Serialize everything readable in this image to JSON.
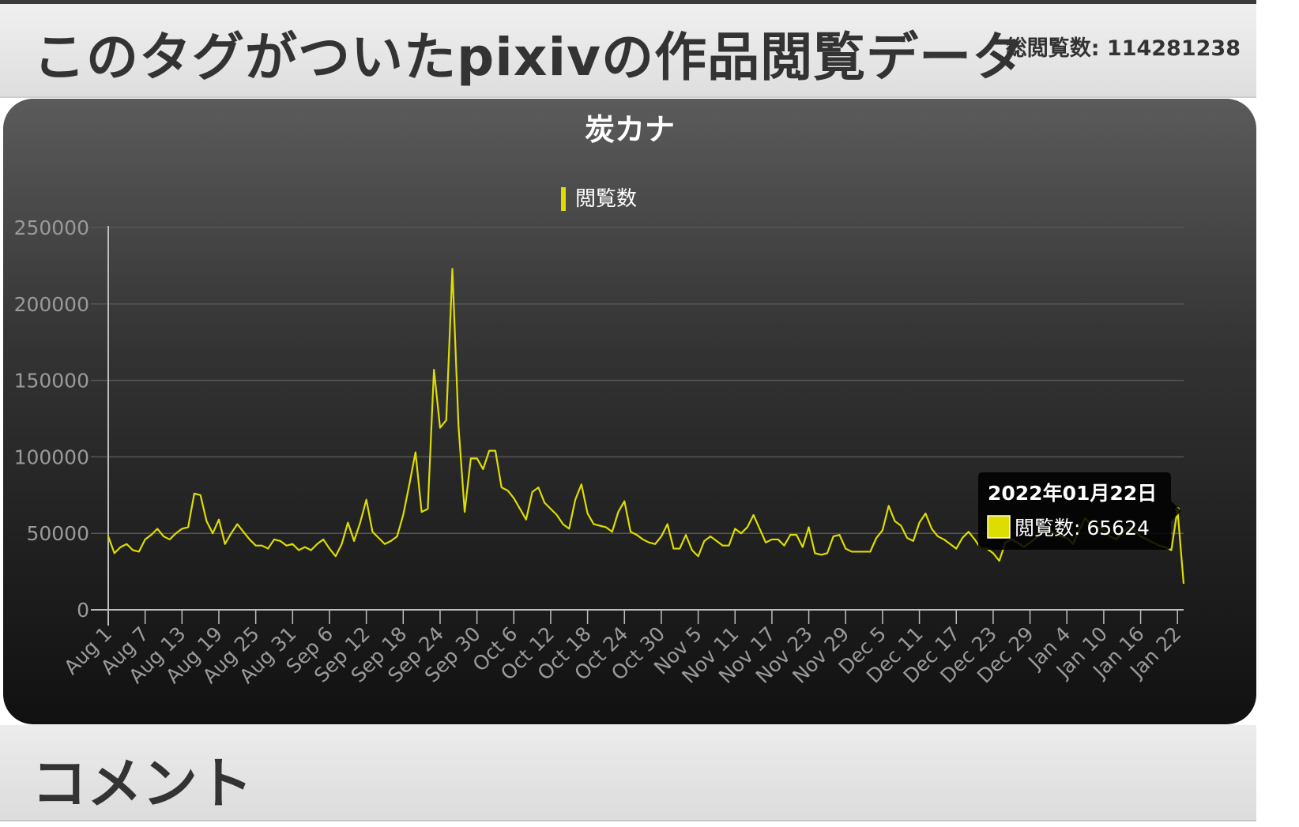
{
  "header": {
    "title": "このタグがついたpixivの作品閲覧データ",
    "total_label": "総閲覧数: 114281238"
  },
  "comment": {
    "title": "コメント"
  },
  "chart_data": {
    "type": "line",
    "title": "炭カナ",
    "legend": "閲覧数",
    "legend_position": "top",
    "color": "#dddd00",
    "grid": true,
    "ylim": [
      0,
      250000
    ],
    "y_ticks": [
      0,
      50000,
      100000,
      150000,
      200000,
      250000
    ],
    "x_ticks": [
      "Aug 1",
      "Aug 7",
      "Aug 13",
      "Aug 19",
      "Aug 25",
      "Aug 31",
      "Sep 6",
      "Sep 12",
      "Sep 18",
      "Sep 24",
      "Sep 30",
      "Oct 6",
      "Oct 12",
      "Oct 18",
      "Oct 24",
      "Oct 30",
      "Nov 5",
      "Nov 11",
      "Nov 17",
      "Nov 23",
      "Nov 29",
      "Dec 5",
      "Dec 11",
      "Dec 17",
      "Dec 23",
      "Dec 29",
      "Jan 4",
      "Jan 10",
      "Jan 16",
      "Jan 22"
    ],
    "x_start": "2021-08-01",
    "x_end": "2022-01-23",
    "series": [
      {
        "name": "閲覧数",
        "values": [
          48000,
          37000,
          41000,
          43000,
          39000,
          38000,
          46000,
          49000,
          53000,
          48000,
          46000,
          50000,
          53000,
          54000,
          76000,
          75000,
          58000,
          50000,
          59000,
          43000,
          50000,
          56000,
          51000,
          46000,
          42000,
          42000,
          40000,
          46000,
          45000,
          42000,
          43000,
          39000,
          41000,
          39000,
          43000,
          46000,
          40000,
          35000,
          43000,
          57000,
          45000,
          57000,
          72000,
          51000,
          47000,
          43000,
          45000,
          48000,
          62000,
          82000,
          103000,
          64000,
          66000,
          157000,
          119000,
          124000,
          223000,
          120000,
          64000,
          99000,
          99000,
          92000,
          104000,
          104000,
          80000,
          78000,
          73000,
          66000,
          59000,
          77000,
          80000,
          70000,
          66000,
          62000,
          56000,
          53000,
          72000,
          82000,
          63000,
          56000,
          55000,
          54000,
          51000,
          64000,
          71000,
          51000,
          49000,
          46000,
          44000,
          43000,
          48000,
          56000,
          40000,
          40000,
          49000,
          39000,
          35000,
          45000,
          48000,
          45000,
          42000,
          42000,
          53000,
          50000,
          54000,
          62000,
          53000,
          44000,
          46000,
          46000,
          42000,
          49000,
          49000,
          41000,
          54000,
          37000,
          36000,
          37000,
          48000,
          49000,
          40000,
          38000,
          38000,
          38000,
          38000,
          47000,
          52000,
          68000,
          58000,
          55000,
          47000,
          45000,
          57000,
          63000,
          53000,
          48000,
          46000,
          43000,
          40000,
          47000,
          51000,
          46000,
          40000,
          40000,
          37000,
          32000,
          44000,
          46000,
          44000,
          41000,
          44000,
          47000,
          50000,
          52000,
          50000,
          48000,
          47000,
          43000,
          52000,
          60000,
          55000,
          54000,
          52000,
          48000,
          46000,
          50000,
          54000,
          52000,
          48000,
          46000,
          44000,
          42000,
          41000,
          39000,
          65624,
          17000
        ],
        "highlight_index": 174
      }
    ],
    "tooltip": {
      "title": "2022年01月22日",
      "label": "閲覧数: 65624"
    }
  }
}
